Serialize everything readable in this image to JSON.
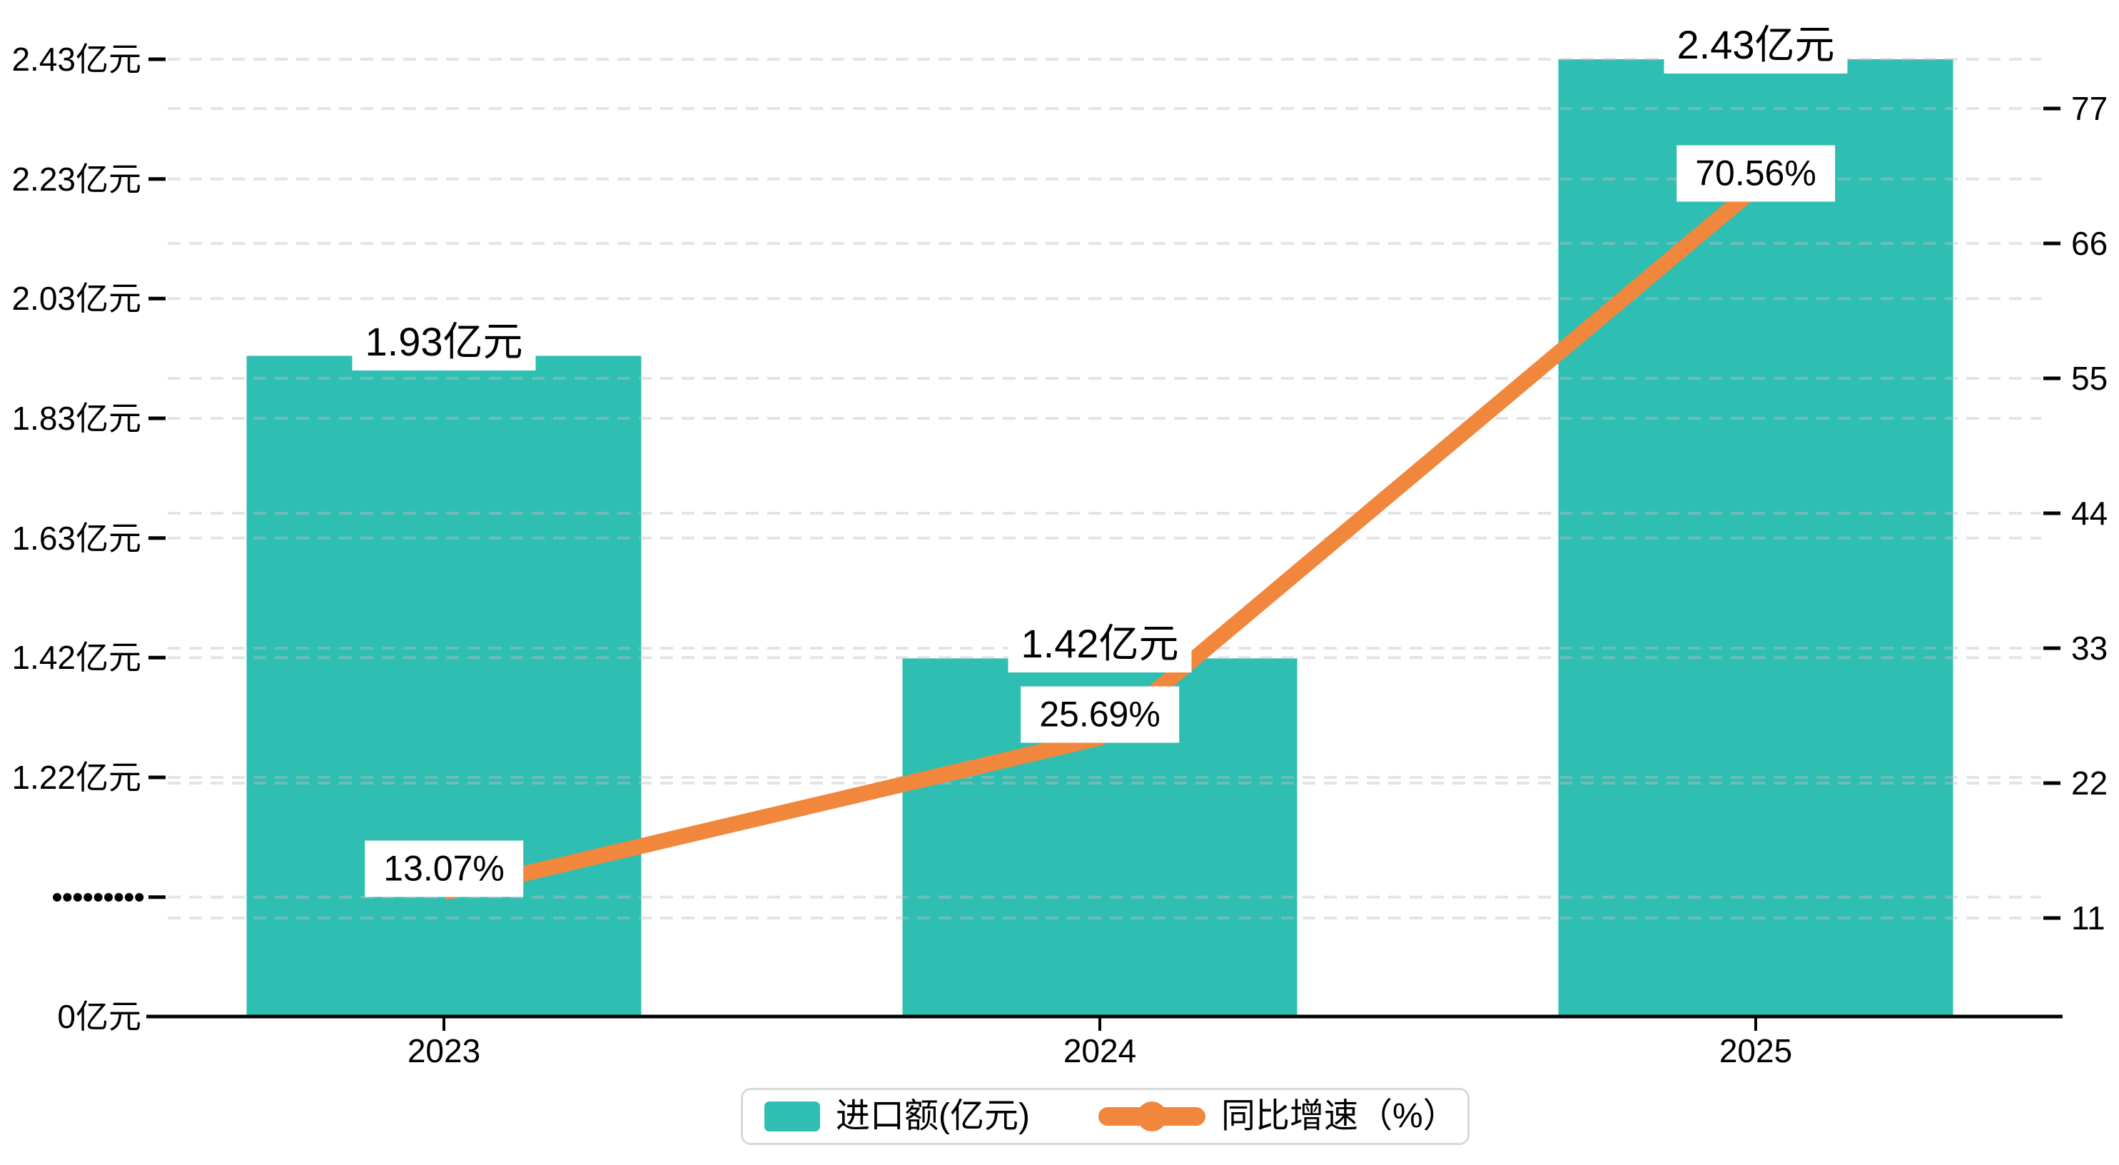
{
  "chart_data": {
    "type": "combo",
    "categories": [
      "2023",
      "2024",
      "2025"
    ],
    "series": [
      {
        "name": "进口额(亿元)",
        "type": "bar",
        "axis": "left",
        "color": "#2FBEB2",
        "values": [
          1.93,
          1.42,
          2.43
        ],
        "labels": [
          "1.93亿元",
          "1.42亿元",
          "2.43亿元"
        ]
      },
      {
        "name": "同比增速（%）",
        "type": "line",
        "axis": "right",
        "color": "#F0873D",
        "values": [
          13.07,
          25.69,
          70.56
        ],
        "labels": [
          "13.07%",
          "25.69%",
          "70.56%"
        ]
      }
    ],
    "left_axis": {
      "tick_labels": [
        "2.43亿元",
        "2.23亿元",
        "2.03亿元",
        "1.83亿元",
        "1.63亿元",
        "1.42亿元",
        "1.22亿元"
      ],
      "tick_values": [
        2.43,
        2.23,
        2.03,
        1.83,
        1.63,
        1.42,
        1.22
      ],
      "zero_label": "0亿元",
      "has_axis_break": true
    },
    "right_axis": {
      "tick_labels": [
        "77",
        "66",
        "55",
        "44",
        "33",
        "22",
        "11"
      ],
      "tick_values": [
        77,
        66,
        55,
        44,
        33,
        22,
        11
      ]
    },
    "legend_position": "bottom",
    "grid": "dashed"
  },
  "legend": {
    "bar_label": "进口额(亿元)",
    "line_label": "同比增速（%）"
  },
  "colors": {
    "bar": "#2FBEB2",
    "line": "#F0873D",
    "grid": "#BFBFBF",
    "axis": "#000000",
    "label_bg": "#FFFFFF",
    "legend_border": "#D9D9D9"
  }
}
